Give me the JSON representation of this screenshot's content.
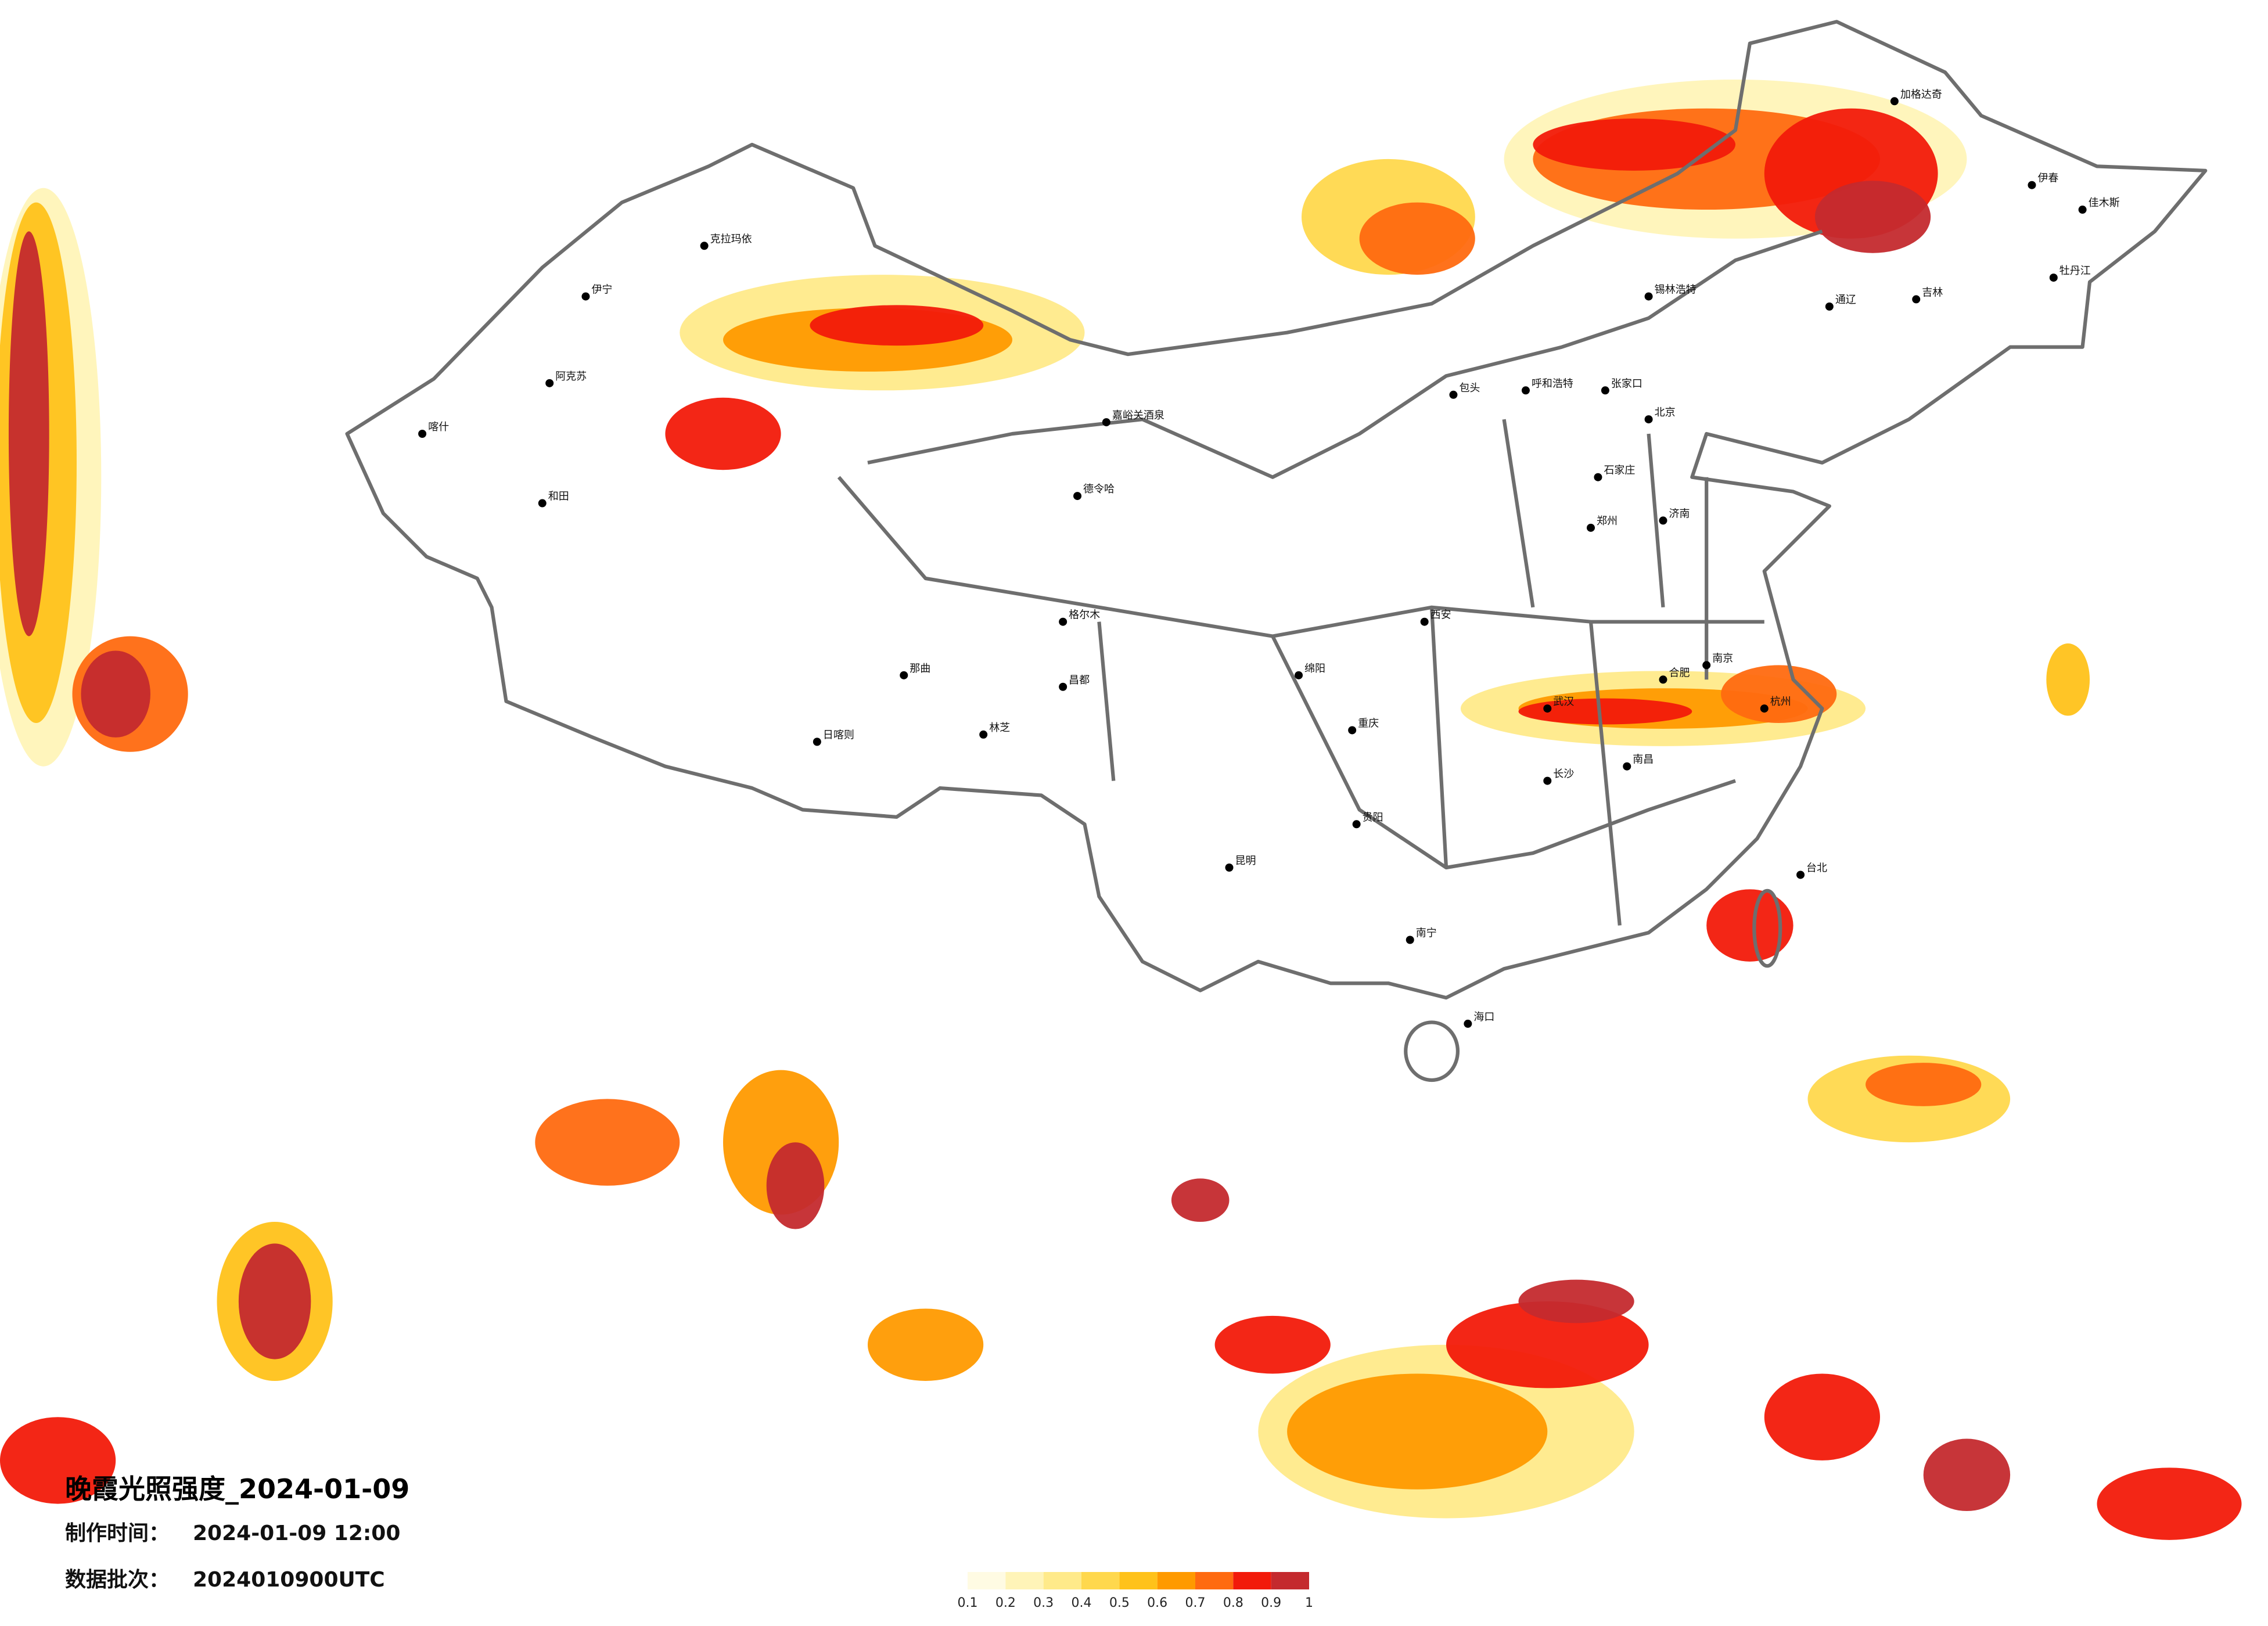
{
  "title": "晚霞光照强度_2024-01-09",
  "production_time": {
    "label": "制作时间：",
    "value": "2024-01-09 12:00"
  },
  "data_batch": {
    "label": "数据批次：",
    "value": "2024010900UTC"
  },
  "colorbar": {
    "colors": [
      "#fffbe3",
      "#fff4b8",
      "#ffea8a",
      "#ffd84d",
      "#ffc21a",
      "#ff9a00",
      "#ff6a10",
      "#f21a0a",
      "#c42a2e"
    ],
    "ticks": [
      0.1,
      0.2,
      0.3,
      0.4,
      0.5,
      0.6,
      0.7,
      0.8,
      0.9,
      1
    ]
  },
  "cities": [
    "加格达奇",
    "伊春",
    "佳木斯",
    "牡丹江",
    "锡林浩特",
    "呼和浩特",
    "包头",
    "张家口",
    "克拉玛依",
    "伊宁",
    "阿克苏",
    "和田",
    "喀什",
    "嘉峪关酒泉",
    "德令哈",
    "林芝",
    "日喀则",
    "那曲",
    "昌都",
    "绵阳",
    "重庆",
    "贵阳",
    "昆明",
    "南宁",
    "海口",
    "台北",
    "杭州",
    "南京",
    "武汉",
    "长沙",
    "西安",
    "郑州",
    "济南",
    "合肥",
    "南昌",
    "北京",
    "石家庄",
    "通辽",
    "吉林",
    "格尔木"
  ]
}
